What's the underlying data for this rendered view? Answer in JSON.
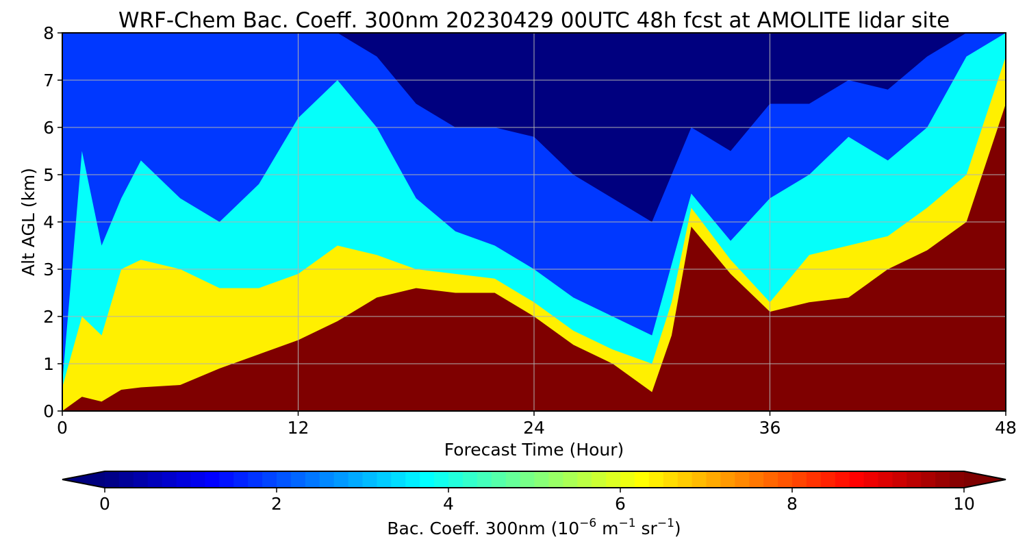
{
  "chart_data": {
    "type": "heatmap",
    "title": "WRF-Chem Bac. Coeff. 300nm  20230429 00UTC 48h fcst at AMOLITE lidar site",
    "xlabel": "Forecast Time (Hour)",
    "ylabel": "Alt AGL (km)",
    "xlim": [
      0,
      48
    ],
    "ylim": [
      0,
      8
    ],
    "x_ticks": [
      "0",
      "12",
      "24",
      "36",
      "48"
    ],
    "y_ticks": [
      "0",
      "1",
      "2",
      "3",
      "4",
      "5",
      "6",
      "7",
      "8"
    ],
    "grid": true,
    "colormap": "jet",
    "colorbar": {
      "label_prefix": "Bac. Coeff. 300nm  (10",
      "exp1": "−6",
      "mid1": " m",
      "exp2": "−1",
      "mid2": " sr",
      "exp3": "−1",
      "label_suffix": ")",
      "range": [
        0,
        10
      ],
      "ticks": [
        "0",
        "2",
        "4",
        "6",
        "8",
        "10"
      ],
      "extend": "both"
    },
    "x_hours": [
      0,
      1,
      2,
      3,
      4,
      6,
      8,
      10,
      12,
      14,
      16,
      18,
      20,
      22,
      24,
      26,
      28,
      30,
      31,
      32,
      34,
      36,
      38,
      40,
      42,
      44,
      46,
      48
    ],
    "saturation_top_km": [
      0,
      0.3,
      0.2,
      0.45,
      0.5,
      0.55,
      0.9,
      1.2,
      1.5,
      1.9,
      2.4,
      2.6,
      2.5,
      2.5,
      2.0,
      1.4,
      1.0,
      0.4,
      1.6,
      3.9,
      2.9,
      2.1,
      2.3,
      2.4,
      3.0,
      3.4,
      4.0,
      6.5
    ],
    "yellow_top_km": [
      0.5,
      2.0,
      1.6,
      3.0,
      3.2,
      3.0,
      2.6,
      2.6,
      2.9,
      3.5,
      3.3,
      3.0,
      2.9,
      2.8,
      2.3,
      1.7,
      1.3,
      1.0,
      2.3,
      4.3,
      3.2,
      2.3,
      3.3,
      3.5,
      3.7,
      4.3,
      5.0,
      7.5
    ],
    "cyan_top_km": [
      0.6,
      5.5,
      3.5,
      4.5,
      5.3,
      4.5,
      4.0,
      4.8,
      6.2,
      7.0,
      6.0,
      4.5,
      3.8,
      3.5,
      3.0,
      2.4,
      2.0,
      1.6,
      3.1,
      4.6,
      3.6,
      4.5,
      5.0,
      5.8,
      5.3,
      6.0,
      7.5,
      8.0
    ],
    "blue_top_km": [
      8.0,
      8.0,
      8.0,
      8.0,
      8.0,
      8.0,
      8.0,
      8.0,
      8.0,
      8.0,
      7.5,
      6.5,
      6.0,
      6.0,
      5.8,
      5.0,
      4.5,
      4.0,
      5.0,
      6.0,
      5.5,
      6.5,
      6.5,
      7.0,
      6.8,
      7.5,
      8.0,
      8.0
    ]
  }
}
